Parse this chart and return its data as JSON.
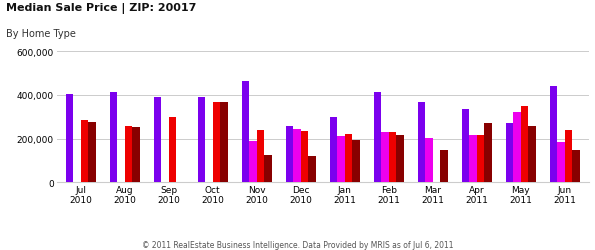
{
  "title": "Median Sale Price | ZIP: 20017",
  "subtitle": "By Home Type",
  "footer": "© 2011 RealEstate Business Intelligence. Data Provided by MRIS as of Jul 6, 2011",
  "months": [
    "Jul\n2010",
    "Aug\n2010",
    "Sep\n2010",
    "Oct\n2010",
    "Nov\n2010",
    "Dec\n2010",
    "Jan\n2011",
    "Feb\n2011",
    "Mar\n2011",
    "Apr\n2011",
    "May\n2011",
    "Jun\n2011"
  ],
  "series": {
    "Detached: AI": [
      405000,
      415000,
      390000,
      390000,
      465000,
      258000,
      298000,
      415000,
      368000,
      335000,
      273000,
      440000
    ],
    "Attached: All": [
      0,
      0,
      0,
      0,
      190000,
      245000,
      210000,
      228000,
      205000,
      215000,
      320000,
      183000
    ],
    "Attached: TH": [
      285000,
      258000,
      298000,
      368000,
      238000,
      235000,
      220000,
      228000,
      0,
      215000,
      350000,
      240000
    ],
    "Attached: Condo/Coop": [
      278000,
      253000,
      0,
      368000,
      125000,
      118000,
      193000,
      218000,
      150000,
      270000,
      260000,
      150000
    ]
  },
  "colors": {
    "Detached: AI": "#7B00EE",
    "Attached: All": "#EE00EE",
    "Attached: TH": "#EE0000",
    "Attached: Condo/Coop": "#880000"
  },
  "ylim": [
    0,
    650000
  ],
  "yticks": [
    0,
    200000,
    400000,
    600000
  ],
  "ytick_labels": [
    "0",
    "200,000",
    "400,000",
    "600,000"
  ],
  "bar_width": 0.17,
  "bg_color": "#ffffff",
  "grid_color": "#cccccc"
}
